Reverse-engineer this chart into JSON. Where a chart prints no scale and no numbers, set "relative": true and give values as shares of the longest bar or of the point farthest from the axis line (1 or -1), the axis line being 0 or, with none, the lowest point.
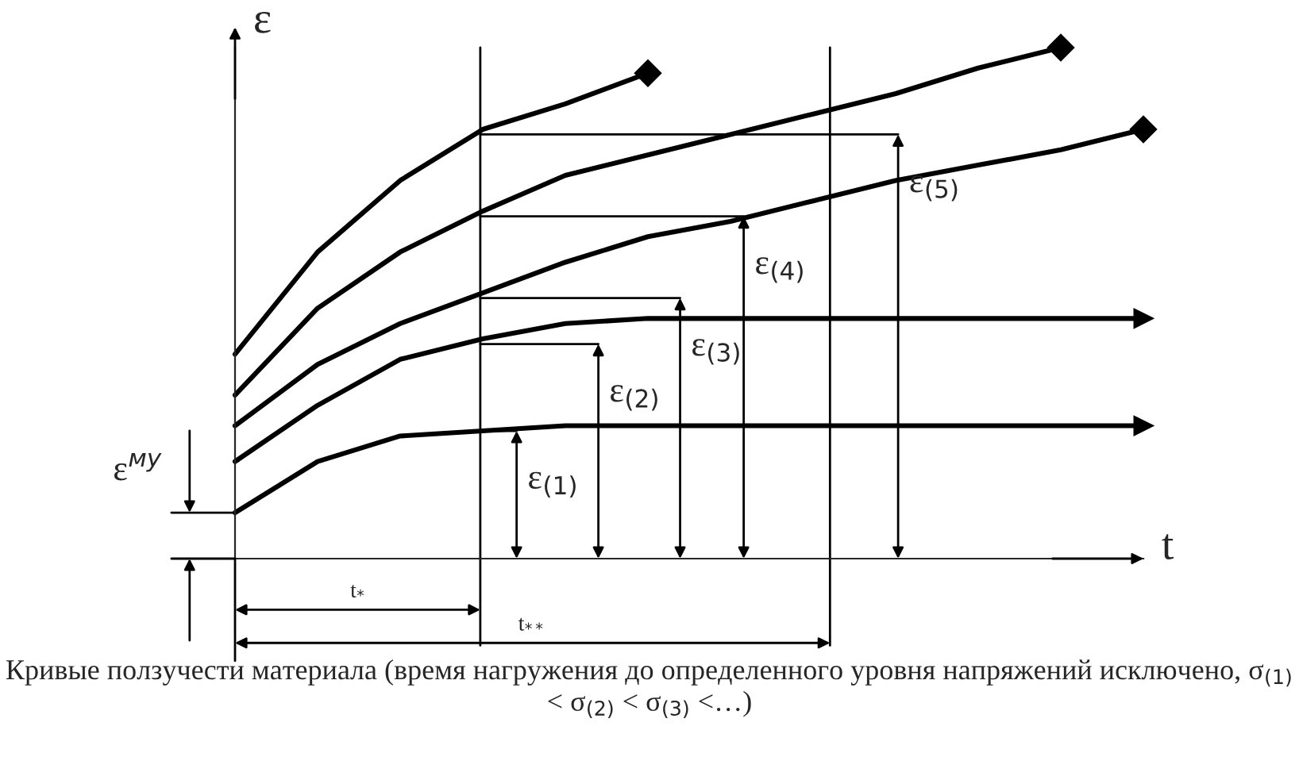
{
  "chart_data": {
    "type": "line",
    "relative": true,
    "xlabel": "t",
    "ylabel": "ε",
    "categories": [
      null,
      null,
      null,
      null,
      null,
      null,
      null,
      null,
      null,
      null,
      null,
      null
    ],
    "series": [
      {
        "color": "#000000",
        "values": [
          0.4,
          0.6,
          0.74,
          0.84,
          0.89,
          0.95,
          null,
          null,
          null,
          null,
          null,
          null
        ]
      },
      {
        "color": "#000000",
        "values": [
          0.32,
          0.49,
          0.6,
          0.68,
          0.75,
          0.79,
          0.83,
          0.87,
          0.91,
          0.96,
          1.0,
          null
        ]
      },
      {
        "color": "#000000",
        "values": [
          0.26,
          0.38,
          0.46,
          0.52,
          0.58,
          0.63,
          0.66,
          0.7,
          0.74,
          0.77,
          0.8,
          0.84
        ]
      },
      {
        "color": "#000000",
        "values": [
          0.19,
          0.3,
          0.39,
          0.43,
          0.46,
          0.47,
          0.47,
          0.47,
          0.47,
          0.47,
          0.47,
          0.47
        ]
      },
      {
        "color": "#000000",
        "values": [
          0.09,
          0.19,
          0.24,
          0.25,
          0.26,
          0.26,
          0.26,
          0.26,
          0.26,
          0.26,
          0.26,
          0.26
        ]
      }
    ],
    "ref_lines": [
      {
        "axis": "y",
        "value": 0.09,
        "label": "ε$^{му}$"
      }
    ],
    "annotations": [
      "t$_{*}$",
      "t$_{**}$",
      "ε$_{(1)}$",
      "ε$_{(2)}$",
      "ε$_{(3)}$",
      "ε$_{(4)}$",
      "ε$_{(5)}$",
      "Кривые ползучести материала (время нагружения до определенного уровня напряжений исключено, σ$_{(1)}$ < σ$_{(2)}$ < σ$_{(3)}$ <…)"
    ]
  }
}
